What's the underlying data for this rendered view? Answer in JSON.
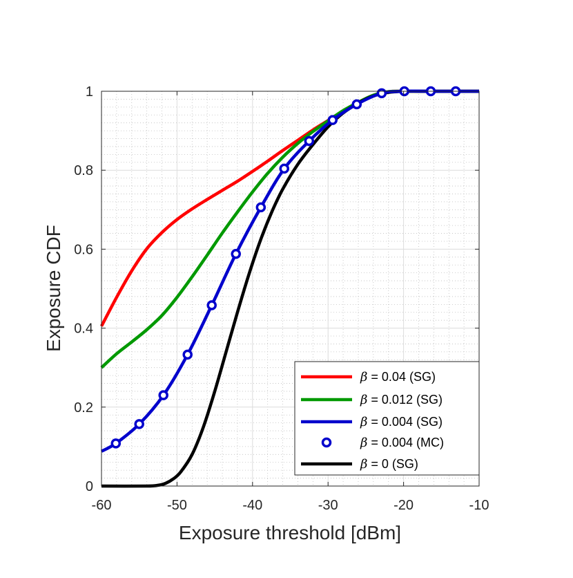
{
  "chart_data": {
    "type": "line",
    "title": "",
    "xlabel": "Exposure threshold [dBm]",
    "ylabel": "Exposure CDF",
    "xlim": [
      -60,
      -10
    ],
    "ylim": [
      0,
      1
    ],
    "x_ticks": [
      -60,
      -50,
      -40,
      -30,
      -20,
      -10
    ],
    "y_ticks": [
      0,
      0.2,
      0.4,
      0.6,
      0.8,
      1
    ],
    "x_tick_labels": [
      "-60",
      "-50",
      "-40",
      "-30",
      "-20",
      "-10"
    ],
    "y_tick_labels": [
      "0",
      "0.2",
      "0.4",
      "0.6",
      "0.8",
      "1"
    ],
    "grid": true,
    "minor_grid": true,
    "legend_position": "bottom-right",
    "series": [
      {
        "name": "β = 0.04 (SG)",
        "beta_symbol": "β",
        "label_rest": " = 0.04 (SG)",
        "color": "#ff0000",
        "style": "line",
        "x": [
          -60,
          -58,
          -56,
          -54,
          -52,
          -50,
          -48,
          -46,
          -44,
          -42,
          -40,
          -38,
          -36,
          -34,
          -32,
          -30,
          -28,
          -26,
          -24,
          -22,
          -20,
          -18,
          -16,
          -14,
          -12,
          -10
        ],
        "y": [
          0.405,
          0.478,
          0.545,
          0.601,
          0.642,
          0.675,
          0.702,
          0.726,
          0.749,
          0.772,
          0.797,
          0.823,
          0.85,
          0.876,
          0.902,
          0.926,
          0.95,
          0.972,
          0.99,
          0.999,
          1.0,
          1.0,
          1.0,
          1.0,
          1.0,
          1.0
        ]
      },
      {
        "name": "β = 0.012 (SG)",
        "beta_symbol": "β",
        "label_rest": " = 0.012 (SG)",
        "color": "#009900",
        "style": "line",
        "x": [
          -60,
          -58,
          -56,
          -54,
          -52,
          -50,
          -48,
          -46,
          -44,
          -42,
          -40,
          -38,
          -36,
          -34,
          -32,
          -30,
          -28,
          -26,
          -24,
          -22,
          -20,
          -18,
          -16,
          -14,
          -12,
          -10
        ],
        "y": [
          0.3,
          0.335,
          0.365,
          0.396,
          0.432,
          0.478,
          0.53,
          0.585,
          0.641,
          0.694,
          0.745,
          0.792,
          0.833,
          0.868,
          0.898,
          0.925,
          0.951,
          0.972,
          0.99,
          0.999,
          1.0,
          1.0,
          1.0,
          1.0,
          1.0,
          1.0
        ]
      },
      {
        "name": "β = 0.004 (SG)",
        "beta_symbol": "β",
        "label_rest": " = 0.004 (SG)",
        "color": "#0000cc",
        "style": "line",
        "x": [
          -60,
          -58.1,
          -55,
          -51.8,
          -48.6,
          -45.4,
          -42.2,
          -38.9,
          -35.8,
          -32.5,
          -29.4,
          -26.2,
          -22.9,
          -19.9,
          -16.4,
          -13.1,
          -10
        ],
        "y": [
          0.088,
          0.108,
          0.157,
          0.23,
          0.333,
          0.458,
          0.588,
          0.706,
          0.804,
          0.874,
          0.927,
          0.967,
          0.995,
          1.0,
          1.0,
          1.0,
          1.0
        ]
      },
      {
        "name": "β = 0.004 (MC)",
        "beta_symbol": "β",
        "label_rest": " = 0.004 (MC)",
        "color": "#0000cc",
        "style": "markers",
        "x": [
          -58.1,
          -55,
          -51.8,
          -48.6,
          -45.4,
          -42.2,
          -38.9,
          -35.8,
          -32.5,
          -29.4,
          -26.2,
          -22.9,
          -19.9,
          -16.4,
          -13.1
        ],
        "y": [
          0.108,
          0.157,
          0.23,
          0.333,
          0.458,
          0.588,
          0.706,
          0.804,
          0.874,
          0.927,
          0.967,
          0.995,
          1.0,
          1.0,
          1.0
        ]
      },
      {
        "name": "β = 0 (SG)",
        "beta_symbol": "β",
        "label_rest": " = 0 (SG)",
        "color": "#000000",
        "style": "line",
        "x": [
          -60,
          -54,
          -52.5,
          -51.5,
          -50.5,
          -49.5,
          -48,
          -46.5,
          -45,
          -43.5,
          -42,
          -40.5,
          -39,
          -37.5,
          -36,
          -34,
          -32,
          -30,
          -28,
          -26,
          -24,
          -22,
          -20,
          -18,
          -16,
          -14,
          -12,
          -10
        ],
        "y": [
          0.0,
          0.0,
          0.002,
          0.007,
          0.018,
          0.036,
          0.08,
          0.15,
          0.24,
          0.34,
          0.44,
          0.535,
          0.62,
          0.692,
          0.752,
          0.815,
          0.865,
          0.91,
          0.945,
          0.97,
          0.988,
          0.997,
          1.0,
          1.0,
          1.0,
          1.0,
          1.0,
          1.0
        ]
      }
    ]
  }
}
